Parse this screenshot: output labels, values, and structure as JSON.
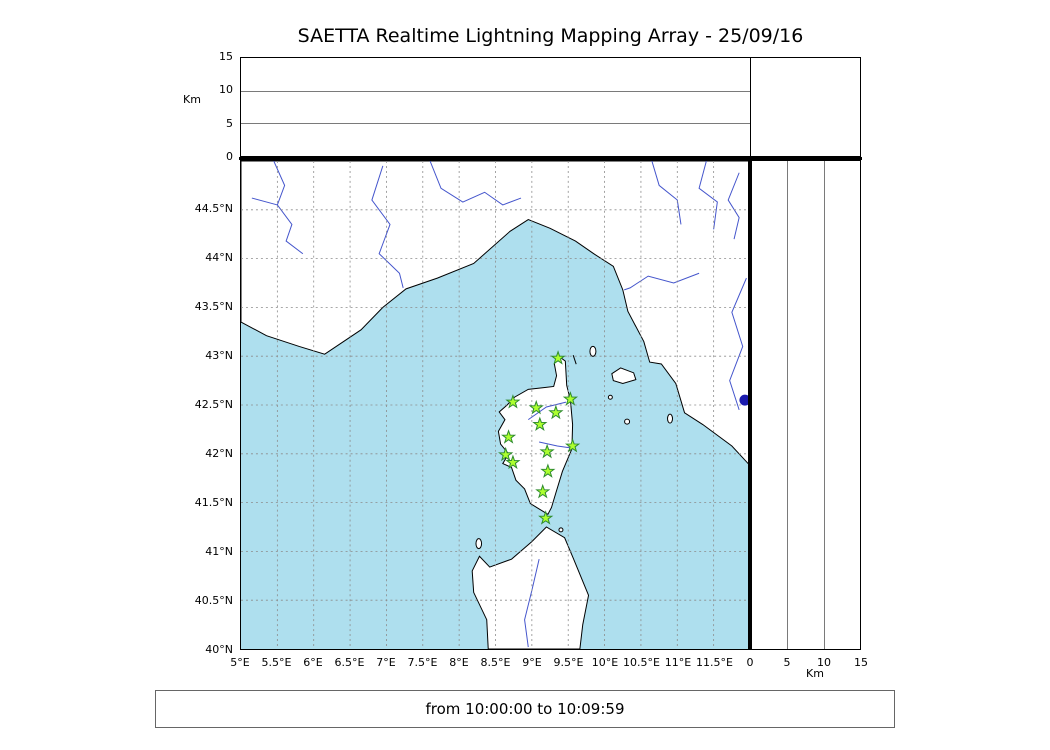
{
  "title": "SAETTA Realtime Lightning Mapping Array - 25/09/16",
  "footer": {
    "text": "from 10:00:00 to 10:09:59"
  },
  "colors": {
    "sea": "#aedfee",
    "land": "#ffffff",
    "coast": "#000000",
    "river": "#4455cc",
    "grid": "#8c8c8c",
    "station_fill": "#adff2f",
    "station_stroke": "#2e8b2e",
    "dot": "#1a1aad"
  },
  "alt_axis": {
    "label": "Km",
    "ticks": [
      "0",
      "5",
      "10",
      "15"
    ],
    "max_km": 15
  },
  "map": {
    "lon_ticks": [
      "5°E",
      "5.5°E",
      "6°E",
      "6.5°E",
      "7°E",
      "7.5°E",
      "8°E",
      "8.5°E",
      "9°E",
      "9.5°E",
      "10°E",
      "10.5°E",
      "11°E",
      "11.5°E"
    ],
    "lat_ticks": [
      "40°N",
      "40.5°N",
      "41°N",
      "41.5°N",
      "42°N",
      "42.5°N",
      "43°N",
      "43.5°N",
      "44°N",
      "44.5°N"
    ]
  },
  "chart_data": {
    "type": "scatter",
    "title": "SAETTA Realtime Lightning Mapping Array - 25/09/16",
    "time_window": "from 10:00:00 to 10:09:59",
    "map_extent": {
      "lon_min": 5,
      "lon_max": 12,
      "lat_min": 40,
      "lat_max": 45
    },
    "grid_step_deg": 0.5,
    "altitude_axis_km": {
      "min": 0,
      "max": 15,
      "ticks": [
        0,
        5,
        10,
        15
      ]
    },
    "stations_lonlat": [
      [
        9.36,
        42.98
      ],
      [
        8.74,
        42.53
      ],
      [
        9.06,
        42.47
      ],
      [
        9.53,
        42.56
      ],
      [
        9.33,
        42.42
      ],
      [
        9.11,
        42.3
      ],
      [
        8.68,
        42.17
      ],
      [
        9.56,
        42.08
      ],
      [
        8.64,
        41.99
      ],
      [
        8.74,
        41.91
      ],
      [
        9.21,
        42.02
      ],
      [
        9.22,
        41.82
      ],
      [
        9.15,
        41.61
      ],
      [
        9.19,
        41.34
      ]
    ],
    "extra_point_lonlat": [
      11.93,
      42.55
    ],
    "lightning_sources": []
  }
}
